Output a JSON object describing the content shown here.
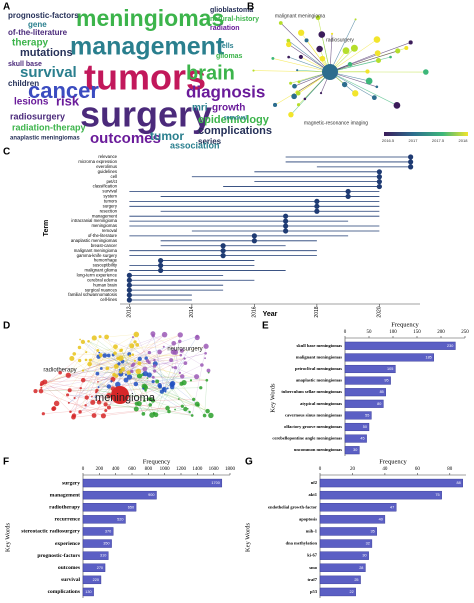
{
  "chart_data": [
    {
      "panel": "A",
      "type": "wordcloud",
      "words": [
        {
          "text": "meningiomas",
          "color": "#3cb44b"
        },
        {
          "text": "management",
          "color": "#2a7f8e"
        },
        {
          "text": "tumors",
          "color": "#c2185b"
        },
        {
          "text": "surgery",
          "color": "#4b2a7b"
        },
        {
          "text": "cancer",
          "color": "#3b4cc0"
        },
        {
          "text": "brain",
          "color": "#3cb44b"
        },
        {
          "text": "diagnosis",
          "color": "#6a1b9a"
        },
        {
          "text": "survival",
          "color": "#2a7f8e"
        },
        {
          "text": "outcomes",
          "color": "#6a1b9a"
        },
        {
          "text": "mutations",
          "color": "#263159"
        },
        {
          "text": "therapy",
          "color": "#3cb44b"
        },
        {
          "text": "risk",
          "color": "#6a1b9a"
        },
        {
          "text": "lesions",
          "color": "#6a1b9a"
        },
        {
          "text": "children",
          "color": "#263159"
        },
        {
          "text": "epidemiology",
          "color": "#3cb44b"
        },
        {
          "text": "complications",
          "color": "#263159"
        },
        {
          "text": "tumor",
          "color": "#2a7f8e"
        },
        {
          "text": "radiosurgery",
          "color": "#4b2a7b"
        },
        {
          "text": "radiation-therapy",
          "color": "#3cb44b"
        },
        {
          "text": "series",
          "color": "#263159"
        },
        {
          "text": "association",
          "color": "#2a7f8e"
        },
        {
          "text": "growth",
          "color": "#6a1b9a"
        },
        {
          "text": "mri",
          "color": "#2a7f8e"
        },
        {
          "text": "glioblastoma",
          "color": "#263159"
        },
        {
          "text": "natural-history",
          "color": "#3cb44b"
        },
        {
          "text": "radiation",
          "color": "#6a1b9a"
        },
        {
          "text": "cells",
          "color": "#2a7f8e"
        },
        {
          "text": "gliomas",
          "color": "#3cb44b"
        },
        {
          "text": "removal",
          "color": "#2a7f8e"
        },
        {
          "text": "of-the-literature",
          "color": "#4b2a7b"
        },
        {
          "text": "prognostic-factors",
          "color": "#263159"
        },
        {
          "text": "gene",
          "color": "#2a7f8e"
        },
        {
          "text": "skull base",
          "color": "#4b2a7b"
        },
        {
          "text": "anaplastic meningiomas",
          "color": "#263159"
        }
      ]
    },
    {
      "panel": "B",
      "type": "network",
      "labels": [
        "magnetic-resonance imaging",
        "malignant meningioma",
        "radiosurgery"
      ],
      "colorbar_ticks": [
        "2016.5",
        "2017",
        "2017.5",
        "2018"
      ]
    },
    {
      "panel": "C",
      "type": "timeline",
      "xlabel": "Year",
      "ylabel": "Term",
      "color": "#1f3b73",
      "terms": [
        "relevance",
        "microrna expression",
        "everolimus",
        "guidelines",
        "cell",
        "pet/ct",
        "classification",
        "survival",
        "system",
        "tumors",
        "surgery",
        "resection",
        "management",
        "intracranial meningioma",
        "meningiomas",
        "removal",
        "of-the-literature",
        "anaplastic meningiomas",
        "breast-cancer",
        "malignant meningioma",
        "gamma-knife surgery",
        "hemorrhage",
        "susceptibility",
        "malignant glioma",
        "long-term experience",
        "cerebral edema",
        "human brain",
        "surgical nuances",
        "familial schwannomatosis",
        "cell-lines"
      ],
      "start": [
        2017,
        2017,
        2018,
        2016,
        2014,
        2016,
        2015,
        2012,
        2013,
        2012,
        2012,
        2013,
        2012,
        2012,
        2012,
        2014,
        2012,
        2013,
        2013,
        2012,
        2012,
        2013,
        2012,
        2012,
        2012,
        2012,
        2012,
        2012,
        2012,
        2012
      ],
      "end": [
        2021,
        2021,
        2021,
        2020,
        2020,
        2020,
        2020,
        2020,
        2020,
        2020,
        2020,
        2020,
        2020,
        2019,
        2020,
        2020,
        2019,
        2018,
        2017,
        2018,
        2018,
        2016,
        2016,
        2017,
        2015,
        2016,
        2015,
        2015,
        2014,
        2014
      ],
      "peak": [
        2021,
        2021,
        2021,
        2020,
        2020,
        2020,
        2020,
        2019,
        2019,
        2018,
        2018,
        2018,
        2017,
        2017,
        2017,
        2017,
        2016,
        2016,
        2015,
        2015,
        2015,
        2013,
        2013,
        2013,
        2012,
        2012,
        2012,
        2012,
        2012,
        2012
      ],
      "xlim": [
        2011.7,
        2021.3
      ],
      "xticks": [
        2012,
        2014,
        2016,
        2018,
        2020
      ]
    },
    {
      "panel": "D",
      "type": "network",
      "labels": [
        "meningioma",
        "neurosurgery",
        "radiotherapy"
      ]
    },
    {
      "panel": "E",
      "type": "barh",
      "xlabel": "Frequency",
      "ylabel": "Key Words",
      "color": "#5b5fc4",
      "categories": [
        "skull base meningiomas",
        "malignant meningiomas",
        "petroclival meningiomas",
        "anaplastic meningiomas",
        "tuberculum sellae meningiomas",
        "atypical meningiomas",
        "cavernous sinus meningiomas",
        "olfactory groove meningiomas",
        "cerebellopontine angle meningiomas",
        "uncommon meningiomas"
      ],
      "values": [
        230,
        185,
        105,
        95,
        85,
        80,
        55,
        50,
        45,
        30
      ],
      "xlim": [
        0,
        250
      ],
      "xticks": [
        0,
        50,
        100,
        150,
        200,
        250
      ]
    },
    {
      "panel": "F",
      "type": "barh",
      "xlabel": "Frequency",
      "ylabel": "Key Words",
      "color": "#5b5fc4",
      "categories": [
        "surgery",
        "management",
        "radiotherapy",
        "recurrence",
        "stereotactic radiosurgery",
        "experience",
        "prognostic-factors",
        "outcomes",
        "survival",
        "complications"
      ],
      "values": [
        1700,
        900,
        650,
        520,
        370,
        350,
        310,
        270,
        220,
        130
      ],
      "xlim": [
        0,
        1800
      ],
      "xticks": [
        0,
        200,
        400,
        600,
        800,
        1000,
        1200,
        1400,
        1600,
        1800
      ]
    },
    {
      "panel": "G",
      "type": "barh",
      "xlabel": "Frequency",
      "ylabel": "Key Words",
      "color": "#5b5fc4",
      "categories": [
        "nf2",
        "akt1",
        "endothelial growth-factor",
        "apoptosis",
        "mib-1",
        "dna methylation",
        "ki-67",
        "smo",
        "traf7",
        "p53"
      ],
      "values": [
        88,
        75,
        47,
        40,
        35,
        32,
        30,
        28,
        25,
        22
      ],
      "xlim": [
        0,
        90
      ],
      "xticks": [
        0,
        20,
        40,
        60,
        80
      ]
    }
  ]
}
